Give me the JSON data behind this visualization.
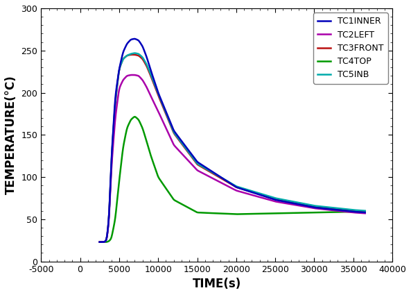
{
  "title": "",
  "xlabel": "TIME(s)",
  "ylabel": "TEMPERATURE(°C)",
  "xlim": [
    -5000,
    40000
  ],
  "ylim": [
    0,
    300
  ],
  "xticks": [
    -5000,
    0,
    5000,
    10000,
    15000,
    20000,
    25000,
    30000,
    35000,
    40000
  ],
  "yticks": [
    0,
    50,
    100,
    150,
    200,
    250,
    300
  ],
  "series": [
    {
      "label": "TC1INNER",
      "color": "#0000BB",
      "linewidth": 1.8,
      "zorder": 5,
      "points": [
        [
          2500,
          23
        ],
        [
          2800,
          23
        ],
        [
          3100,
          23
        ],
        [
          3400,
          25
        ],
        [
          3700,
          50
        ],
        [
          4000,
          120
        ],
        [
          4500,
          195
        ],
        [
          5000,
          228
        ],
        [
          5500,
          248
        ],
        [
          6000,
          258
        ],
        [
          6500,
          263
        ],
        [
          7000,
          264
        ],
        [
          7500,
          262
        ],
        [
          8000,
          255
        ],
        [
          8500,
          243
        ],
        [
          9000,
          228
        ],
        [
          10000,
          200
        ],
        [
          12000,
          155
        ],
        [
          15000,
          118
        ],
        [
          20000,
          88
        ],
        [
          25000,
          73
        ],
        [
          30000,
          64
        ],
        [
          35000,
          59
        ],
        [
          36500,
          58
        ]
      ]
    },
    {
      "label": "TC2LEFT",
      "color": "#AA00AA",
      "linewidth": 1.8,
      "zorder": 4,
      "points": [
        [
          2500,
          23
        ],
        [
          2800,
          23
        ],
        [
          3100,
          23
        ],
        [
          3400,
          25
        ],
        [
          3700,
          48
        ],
        [
          4000,
          110
        ],
        [
          4500,
          170
        ],
        [
          5000,
          205
        ],
        [
          5500,
          215
        ],
        [
          6000,
          220
        ],
        [
          6500,
          221
        ],
        [
          7000,
          221
        ],
        [
          7500,
          220
        ],
        [
          8000,
          215
        ],
        [
          8500,
          207
        ],
        [
          9000,
          197
        ],
        [
          10000,
          178
        ],
        [
          12000,
          138
        ],
        [
          15000,
          108
        ],
        [
          20000,
          84
        ],
        [
          25000,
          71
        ],
        [
          30000,
          63
        ],
        [
          35000,
          58
        ],
        [
          36500,
          57
        ]
      ]
    },
    {
      "label": "TC3FRONT",
      "color": "#BB1111",
      "linewidth": 1.8,
      "zorder": 3,
      "points": [
        [
          2500,
          23
        ],
        [
          2800,
          23
        ],
        [
          3100,
          23
        ],
        [
          3400,
          25
        ],
        [
          3700,
          50
        ],
        [
          4000,
          118
        ],
        [
          4500,
          188
        ],
        [
          5000,
          228
        ],
        [
          5500,
          240
        ],
        [
          6000,
          244
        ],
        [
          6500,
          245
        ],
        [
          7000,
          245
        ],
        [
          7500,
          244
        ],
        [
          8000,
          240
        ],
        [
          8500,
          232
        ],
        [
          9000,
          221
        ],
        [
          10000,
          197
        ],
        [
          12000,
          152
        ],
        [
          15000,
          115
        ],
        [
          20000,
          88
        ],
        [
          25000,
          74
        ],
        [
          30000,
          65
        ],
        [
          35000,
          60
        ],
        [
          36500,
          59
        ]
      ]
    },
    {
      "label": "TC4TOP",
      "color": "#009900",
      "linewidth": 1.8,
      "zorder": 2,
      "points": [
        [
          2500,
          23
        ],
        [
          2800,
          23
        ],
        [
          3100,
          23
        ],
        [
          3400,
          23
        ],
        [
          3700,
          24
        ],
        [
          4000,
          27
        ],
        [
          4500,
          50
        ],
        [
          5000,
          95
        ],
        [
          5500,
          135
        ],
        [
          6000,
          158
        ],
        [
          6500,
          168
        ],
        [
          7000,
          172
        ],
        [
          7500,
          168
        ],
        [
          8000,
          158
        ],
        [
          8500,
          143
        ],
        [
          9000,
          127
        ],
        [
          10000,
          100
        ],
        [
          12000,
          73
        ],
        [
          15000,
          58
        ],
        [
          20000,
          56
        ],
        [
          25000,
          57
        ],
        [
          30000,
          58
        ],
        [
          35000,
          59
        ],
        [
          36500,
          59
        ]
      ]
    },
    {
      "label": "TC5INB",
      "color": "#00AAAA",
      "linewidth": 1.8,
      "zorder": 3,
      "points": [
        [
          2500,
          23
        ],
        [
          2800,
          23
        ],
        [
          3100,
          23
        ],
        [
          3200,
          24
        ],
        [
          3400,
          25
        ],
        [
          3700,
          50
        ],
        [
          4000,
          118
        ],
        [
          4500,
          190
        ],
        [
          5000,
          228
        ],
        [
          5500,
          240
        ],
        [
          6000,
          244
        ],
        [
          6500,
          246
        ],
        [
          7000,
          247
        ],
        [
          7500,
          246
        ],
        [
          8000,
          242
        ],
        [
          8500,
          234
        ],
        [
          9000,
          223
        ],
        [
          10000,
          199
        ],
        [
          12000,
          153
        ],
        [
          15000,
          116
        ],
        [
          20000,
          89
        ],
        [
          25000,
          75
        ],
        [
          30000,
          66
        ],
        [
          35000,
          61
        ],
        [
          36500,
          60
        ]
      ]
    }
  ],
  "tc5inb_hook": {
    "points": [
      [
        2500,
        23
      ],
      [
        2700,
        23
      ],
      [
        2900,
        24
      ],
      [
        3050,
        24
      ],
      [
        3100,
        23
      ]
    ]
  },
  "legend_loc": "upper right",
  "legend_fontsize": 9,
  "tick_fontsize": 9,
  "label_fontsize": 12,
  "figsize": [
    5.93,
    4.25
  ],
  "dpi": 100
}
